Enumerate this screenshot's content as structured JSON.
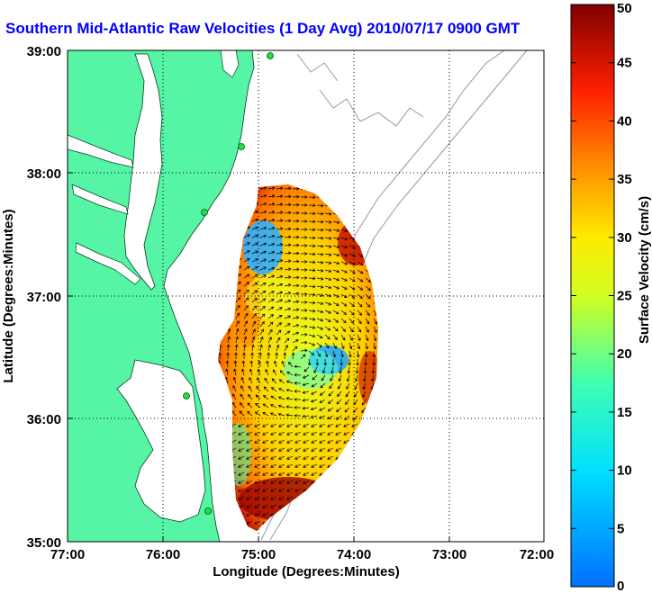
{
  "title": "Southern Mid-Atlantic Raw Velocities (1 Day Avg) 2010/07/17 0900 GMT",
  "x_axis": {
    "label": "Longitude (Degrees:Minutes)",
    "ticks": [
      "77:00",
      "76:00",
      "75:00",
      "74:00",
      "73:00",
      "72:00"
    ]
  },
  "y_axis": {
    "label": "Latitude (Degrees:Minutes)",
    "ticks": [
      "39:00",
      "38:00",
      "37:00",
      "36:00",
      "35:00"
    ]
  },
  "colorbar": {
    "label": "Surface Velocity (cm/s)",
    "ticks": [
      "50",
      "45",
      "40",
      "35",
      "30",
      "25",
      "20",
      "15",
      "10",
      "5",
      "0"
    ],
    "min": 0,
    "max": 50
  },
  "colors": {
    "land": "#55f5a5",
    "title": "#0000ff",
    "coast_contour": "#999999"
  },
  "map_extent": {
    "lon_west": -77,
    "lon_east": -72,
    "lat_south": 35,
    "lat_north": 39
  }
}
